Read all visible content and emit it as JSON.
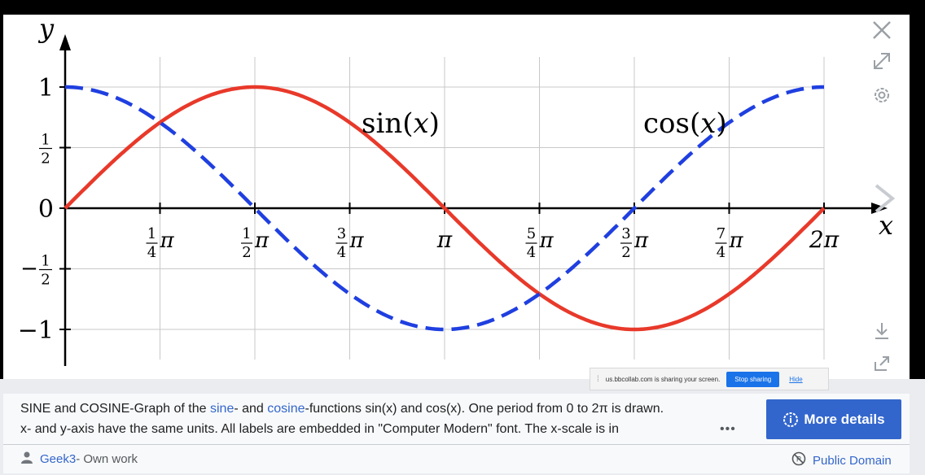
{
  "chart_data": {
    "type": "line",
    "xlabel": "x",
    "ylabel": "y",
    "xlim": [
      0,
      6.2832
    ],
    "ylim": [
      -1,
      1
    ],
    "x_ticks": [
      {
        "value": 0.7854,
        "num": "1",
        "den": "4",
        "sym": "π"
      },
      {
        "value": 1.5708,
        "num": "1",
        "den": "2",
        "sym": "π"
      },
      {
        "value": 2.3562,
        "num": "3",
        "den": "4",
        "sym": "π"
      },
      {
        "value": 3.1416,
        "num": "",
        "den": "",
        "sym": "π"
      },
      {
        "value": 3.927,
        "num": "5",
        "den": "4",
        "sym": "π"
      },
      {
        "value": 4.7124,
        "num": "3",
        "den": "2",
        "sym": "π"
      },
      {
        "value": 5.4978,
        "num": "7",
        "den": "4",
        "sym": "π"
      },
      {
        "value": 6.2832,
        "num": "",
        "den": "",
        "sym": "2π"
      }
    ],
    "y_ticks": [
      {
        "value": 1,
        "label": "1"
      },
      {
        "value": 0.5,
        "num": "1",
        "den": "2"
      },
      {
        "value": 0,
        "label": "0"
      },
      {
        "value": -0.5,
        "num": "1",
        "den": "2",
        "neg": true
      },
      {
        "value": -1,
        "label": "−1"
      }
    ],
    "series": [
      {
        "name": "sin(x)",
        "function": "sin",
        "color": "#e8392a",
        "style": "solid",
        "x": [
          0,
          0.7854,
          1.5708,
          2.3562,
          3.1416,
          3.927,
          4.7124,
          5.4978,
          6.2832
        ],
        "y": [
          0,
          0.707,
          1,
          0.707,
          0,
          -0.707,
          -1,
          -0.707,
          0
        ]
      },
      {
        "name": "cos(x)",
        "function": "cos",
        "color": "#1f3fe0",
        "style": "dashed",
        "x": [
          0,
          0.7854,
          1.5708,
          2.3562,
          3.1416,
          3.927,
          4.7124,
          5.4978,
          6.2832
        ],
        "y": [
          1,
          0.707,
          0,
          -0.707,
          -1,
          -0.707,
          0,
          0.707,
          1
        ]
      }
    ],
    "annotations": [
      {
        "text_fn": "sin",
        "text_open": "(",
        "text_var": "x",
        "text_close": ")"
      },
      {
        "text_fn": "cos",
        "text_open": "(",
        "text_var": "x",
        "text_close": ")"
      }
    ],
    "grid": true
  },
  "toolbar": {
    "close": "close-icon",
    "fullscreen": "expand-icon",
    "settings": "gear-icon",
    "next": "chevron-right-icon",
    "download": "download-icon",
    "share": "share-icon"
  },
  "description": {
    "part1": "SINE and COSINE-Graph of the ",
    "link1": "sine",
    "part2": "- and ",
    "link2": "cosine",
    "part3": "-functions sin(x) and cos(x). One period from 0 to 2π is drawn.",
    "line2": "x- and y-axis have the same units. All labels are embedded in \"Computer Modern\" font. The x-scale is in",
    "more": "•••"
  },
  "more_details_button": "More details",
  "author": {
    "name": "Geek3",
    "suffix": " - Own work"
  },
  "license": "Public Domain",
  "share_bar": {
    "message": "us.bbcollab.com is sharing your screen.",
    "stop": "Stop sharing",
    "hide": "Hide"
  },
  "colors": {
    "sin": "#e8392a",
    "cos": "#1f3fe0",
    "link": "#3366cc",
    "button": "#3366cc"
  }
}
